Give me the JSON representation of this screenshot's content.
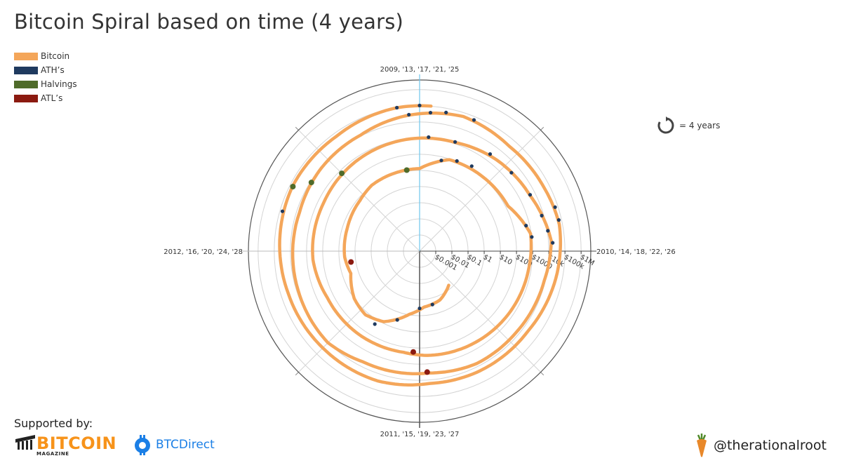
{
  "title": "Bitcoin Spiral based on time (4 years)",
  "legend": [
    {
      "label": "Bitcoin",
      "color": "#f4a65a"
    },
    {
      "label": "ATH’s",
      "color": "#1f3a5f"
    },
    {
      "label": "Halvings",
      "color": "#4f6b2a"
    },
    {
      "label": "ATL’s",
      "color": "#8b1a10"
    }
  ],
  "cycle_key": {
    "label": "=  4 years",
    "icon": "cycle-arrow-icon"
  },
  "footer": {
    "supported_by": "Supported by:",
    "bitcoin_magazine": {
      "word": "BITCOIN",
      "sub": "MAGAZINE"
    },
    "btc_direct": "BTCDirect",
    "credit": "@therationalroot"
  },
  "chart_data": {
    "type": "spiral",
    "period": "4 years",
    "start_year": 2009,
    "angular_labels": [
      {
        "label": "2009, '13, '17, '21, '25",
        "position": "top"
      },
      {
        "label": "2010, '14, '18, '22, '26",
        "position": "right"
      },
      {
        "label": "2011, '15, '19, '23, '27",
        "position": "bottom"
      },
      {
        "label": "2012, '16, '20, '24, '28",
        "position": "left"
      }
    ],
    "radial_scale": "log",
    "radial_ticks": [
      "$0.001",
      "$0.01",
      "$0.1",
      "$1",
      "$10",
      "$100",
      "$1000",
      "$10k",
      "$100k",
      "$1M"
    ],
    "series": [
      {
        "name": "Bitcoin",
        "points": [
          [
            2010.55,
            0.06
          ],
          [
            2010.75,
            0.19
          ],
          [
            2010.95,
            0.3
          ],
          [
            2011.1,
            0.9
          ],
          [
            2011.3,
            8
          ],
          [
            2011.45,
            15
          ],
          [
            2011.6,
            10
          ],
          [
            2011.8,
            3
          ],
          [
            2011.95,
            4.5
          ],
          [
            2012.2,
            5
          ],
          [
            2012.45,
            7
          ],
          [
            2012.6,
            11
          ],
          [
            2012.85,
            12
          ],
          [
            2013.0,
            13
          ],
          [
            2013.2,
            90
          ],
          [
            2013.45,
            110
          ],
          [
            2013.7,
            140
          ],
          [
            2013.9,
            900
          ],
          [
            2014.1,
            700
          ],
          [
            2014.4,
            550
          ],
          [
            2014.7,
            400
          ],
          [
            2014.95,
            300
          ],
          [
            2015.1,
            220
          ],
          [
            2015.4,
            240
          ],
          [
            2015.7,
            250
          ],
          [
            2015.95,
            420
          ],
          [
            2016.3,
            450
          ],
          [
            2016.6,
            650
          ],
          [
            2016.95,
            950
          ],
          [
            2017.2,
            1200
          ],
          [
            2017.45,
            2500
          ],
          [
            2017.7,
            4500
          ],
          [
            2017.95,
            15000
          ],
          [
            2018.15,
            8500
          ],
          [
            2018.45,
            6500
          ],
          [
            2018.7,
            6400
          ],
          [
            2018.95,
            3700
          ],
          [
            2019.3,
            5000
          ],
          [
            2019.5,
            10500
          ],
          [
            2019.8,
            8000
          ],
          [
            2020.2,
            6500
          ],
          [
            2020.45,
            9300
          ],
          [
            2020.7,
            11500
          ],
          [
            2020.95,
            28000
          ],
          [
            2021.2,
            58000
          ],
          [
            2021.45,
            35000
          ],
          [
            2021.7,
            45000
          ],
          [
            2021.88,
            64000
          ],
          [
            2022.1,
            42000
          ],
          [
            2022.4,
            22000
          ],
          [
            2022.7,
            20000
          ],
          [
            2022.95,
            16500
          ],
          [
            2023.2,
            28000
          ],
          [
            2023.5,
            30000
          ],
          [
            2023.8,
            35000
          ],
          [
            2024.1,
            52000
          ],
          [
            2024.3,
            68000
          ],
          [
            2024.6,
            60000
          ],
          [
            2024.9,
            98000
          ],
          [
            2025.05,
            102000
          ]
        ]
      },
      {
        "name": "ATH’s",
        "points": [
          [
            2010.85,
            0.25
          ],
          [
            2011.0,
            0.35
          ],
          [
            2011.2,
            3
          ],
          [
            2011.35,
            20
          ],
          [
            2013.15,
            60
          ],
          [
            2013.25,
            110
          ],
          [
            2013.35,
            150
          ],
          [
            2013.85,
            600
          ],
          [
            2013.92,
            1000
          ],
          [
            2017.05,
            1200
          ],
          [
            2017.2,
            1300
          ],
          [
            2017.4,
            2700
          ],
          [
            2017.55,
            3000
          ],
          [
            2017.7,
            4800
          ],
          [
            2017.82,
            7500
          ],
          [
            2017.9,
            11000
          ],
          [
            2017.96,
            18000
          ],
          [
            2020.95,
            30000
          ],
          [
            2021.05,
            40000
          ],
          [
            2021.12,
            55000
          ],
          [
            2021.25,
            62000
          ],
          [
            2021.8,
            66000
          ],
          [
            2021.86,
            68000
          ],
          [
            2024.18,
            70000
          ],
          [
            2024.9,
            99000
          ],
          [
            2025.0,
            105000
          ]
        ]
      },
      {
        "name": "Halvings",
        "points": [
          [
            2012.9,
            12
          ],
          [
            2016.5,
            650
          ],
          [
            2020.36,
            8600
          ],
          [
            2024.3,
            64000
          ]
        ]
      },
      {
        "name": "ATL’s",
        "points": [
          [
            2011.9,
            2
          ],
          [
            2015.04,
            180
          ],
          [
            2018.96,
            3200
          ]
        ]
      }
    ]
  }
}
